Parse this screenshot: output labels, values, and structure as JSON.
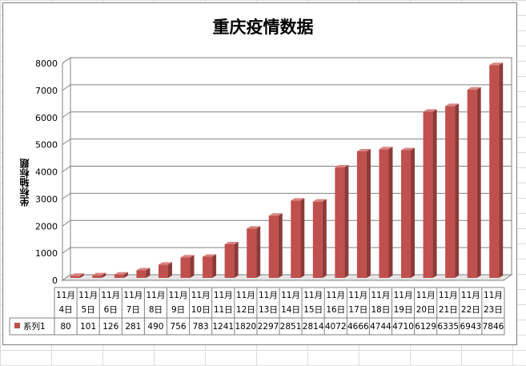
{
  "chart_data": {
    "type": "bar",
    "title": "重庆疫情数据",
    "ylabel": "坐标轴标题",
    "xlabel": "",
    "ylim": [
      0,
      8000
    ],
    "yticks": [
      0,
      1000,
      2000,
      3000,
      4000,
      5000,
      6000,
      7000,
      8000
    ],
    "grid": true,
    "legend_placement": "data-table-left",
    "categories_line1": [
      "11月",
      "11月",
      "11月",
      "11月",
      "11月",
      "11月",
      "11月",
      "11月",
      "11月",
      "11月",
      "11月",
      "11月",
      "11月",
      "11月",
      "11月",
      "11月",
      "11月",
      "11月",
      "11月",
      "11月"
    ],
    "categories_line2": [
      "4日",
      "5日",
      "6日",
      "7日",
      "8日",
      "9日",
      "10日",
      "11日",
      "12日",
      "13日",
      "14日",
      "15日",
      "16日",
      "17日",
      "18日",
      "19日",
      "20日",
      "21日",
      "22日",
      "23日"
    ],
    "series": [
      {
        "name": "系列1",
        "color": "#c0504d",
        "values": [
          80,
          101,
          126,
          281,
          490,
          756,
          783,
          1241,
          1820,
          2297,
          2851,
          2814,
          4072,
          4666,
          4744,
          4710,
          6129,
          6335,
          6943,
          7846
        ]
      }
    ]
  }
}
